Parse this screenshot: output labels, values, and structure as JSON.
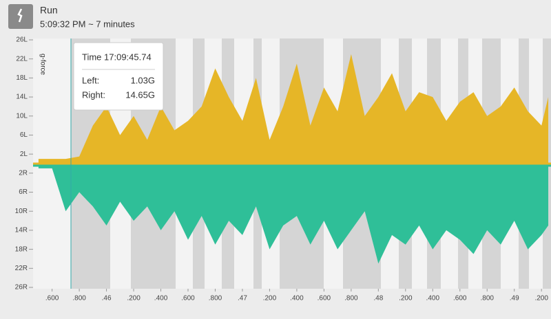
{
  "header": {
    "title": "Run",
    "subtitle": "5:09:32 PM ~ 7 minutes"
  },
  "chart_data": {
    "type": "area",
    "ylabel": "g-force",
    "x": [
      45.5,
      45.6,
      45.7,
      45.8,
      45.9,
      46.0,
      46.1,
      46.2,
      46.3,
      46.4,
      46.5,
      46.6,
      46.7,
      46.8,
      46.9,
      47.0,
      47.1,
      47.2,
      47.3,
      47.4,
      47.5,
      47.6,
      47.7,
      47.8,
      47.9,
      48.0,
      48.1,
      48.2,
      48.3,
      48.4,
      48.5,
      48.6,
      48.7,
      48.8,
      48.9,
      49.0,
      49.1,
      49.2,
      49.25
    ],
    "series": [
      {
        "name": "Left",
        "color": "#e6b627",
        "values": [
          1,
          1,
          1,
          1.5,
          8,
          12,
          6,
          10,
          5,
          12,
          7,
          9,
          12,
          20,
          14,
          9,
          18,
          5,
          12,
          21,
          8,
          16,
          11,
          23,
          10,
          14,
          19,
          11,
          15,
          14,
          9,
          13,
          15,
          10,
          12,
          16,
          11,
          8,
          14
        ]
      },
      {
        "name": "Right",
        "color": "#2fbf98",
        "values": [
          -1,
          -1,
          -10,
          -6,
          -9,
          -13,
          -8,
          -12,
          -9,
          -14,
          -10,
          -16,
          -11,
          -17,
          -12,
          -15,
          -9,
          -18,
          -13,
          -11,
          -17,
          -12,
          -18,
          -14,
          -10,
          -21,
          -15,
          -17,
          -13,
          -18,
          -14,
          -16,
          -19,
          -14,
          -17,
          -12,
          -18,
          -15,
          -13
        ]
      }
    ],
    "xlim": [
      45.46,
      49.27
    ],
    "xticks": [
      {
        "value": 45.6,
        "label": ".600"
      },
      {
        "value": 45.8,
        "label": ".800"
      },
      {
        "value": 46.0,
        "label": ".46"
      },
      {
        "value": 46.2,
        "label": ".200"
      },
      {
        "value": 46.4,
        "label": ".400"
      },
      {
        "value": 46.6,
        "label": ".600"
      },
      {
        "value": 46.8,
        "label": ".800"
      },
      {
        "value": 47.0,
        "label": ".47"
      },
      {
        "value": 47.2,
        "label": ".200"
      },
      {
        "value": 47.4,
        "label": ".400"
      },
      {
        "value": 47.6,
        "label": ".600"
      },
      {
        "value": 47.8,
        "label": ".800"
      },
      {
        "value": 48.0,
        "label": ".48"
      },
      {
        "value": 48.2,
        "label": ".200"
      },
      {
        "value": 48.4,
        "label": ".400"
      },
      {
        "value": 48.6,
        "label": ".600"
      },
      {
        "value": 48.8,
        "label": ".800"
      },
      {
        "value": 49.0,
        "label": ".49"
      },
      {
        "value": 49.2,
        "label": ".200"
      }
    ],
    "ylim": [
      -26,
      26
    ],
    "yticks": [
      {
        "value": 26,
        "label": "26L"
      },
      {
        "value": 22,
        "label": "22L"
      },
      {
        "value": 18,
        "label": "18L"
      },
      {
        "value": 14,
        "label": "14L"
      },
      {
        "value": 10,
        "label": "10L"
      },
      {
        "value": 6,
        "label": "6L"
      },
      {
        "value": 2,
        "label": "2L"
      },
      {
        "value": -2,
        "label": "2R"
      },
      {
        "value": -6,
        "label": "6R"
      },
      {
        "value": -10,
        "label": "10R"
      },
      {
        "value": -14,
        "label": "14R"
      },
      {
        "value": -18,
        "label": "18R"
      },
      {
        "value": -22,
        "label": "22R"
      },
      {
        "value": -26,
        "label": "26R"
      }
    ],
    "tooltip": {
      "time": "Time 17:09:45.74",
      "rows": [
        {
          "label": "Left:",
          "value": "1.03G"
        },
        {
          "label": "Right:",
          "value": "14.65G"
        }
      ]
    }
  }
}
